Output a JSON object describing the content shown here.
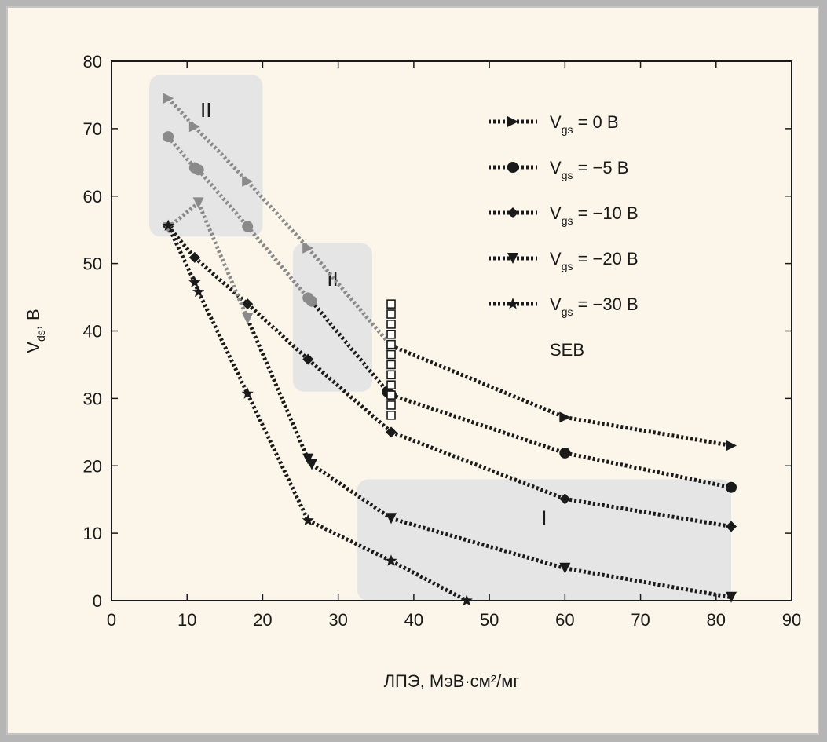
{
  "chart_data": {
    "type": "line",
    "title": "",
    "xlabel": "ЛПЭ, МэВ·см²/мг",
    "ylabel": "V_ds, В",
    "xlim": [
      0,
      90
    ],
    "ylim": [
      0,
      80
    ],
    "xticks": [
      0,
      10,
      20,
      30,
      40,
      50,
      60,
      70,
      80,
      90
    ],
    "yticks": [
      0,
      10,
      20,
      30,
      40,
      50,
      60,
      70,
      80
    ],
    "grid": false,
    "legend_position": "top-right",
    "series": [
      {
        "name": "V_gs = 0 В",
        "label_parts": [
          "V",
          "gs",
          " = 0 В"
        ],
        "marker": "triangle-right",
        "color": "#1a1a1a",
        "highlight_color": "#8a8a8a",
        "highlight_until_index": 4,
        "points": [
          [
            7.5,
            74.5
          ],
          [
            11,
            70.3
          ],
          [
            18,
            62.2
          ],
          [
            26,
            52.3
          ],
          [
            37,
            37.8
          ],
          [
            60,
            27.2
          ],
          [
            82,
            23
          ]
        ]
      },
      {
        "name": "V_gs = −5 В",
        "label_parts": [
          "V",
          "gs",
          " = −5 В"
        ],
        "marker": "circle",
        "color": "#1a1a1a",
        "highlight_color": "#8a8a8a",
        "highlight_until_index": 5,
        "points": [
          [
            7.5,
            68.8
          ],
          [
            11,
            64.2
          ],
          [
            11.5,
            63.9
          ],
          [
            18,
            55.5
          ],
          [
            26,
            44.9
          ],
          [
            26.5,
            44.4
          ],
          [
            36.5,
            31
          ],
          [
            37,
            30.5
          ],
          [
            60,
            21.9
          ],
          [
            82,
            16.8
          ]
        ]
      },
      {
        "name": "V_gs = −10 В",
        "label_parts": [
          "V",
          "gs",
          " = −10 В"
        ],
        "marker": "diamond",
        "color": "#1a1a1a",
        "highlight_color": "#8a8a8a",
        "highlight_until_index": 0,
        "points": [
          [
            7.5,
            55.5
          ],
          [
            11,
            50.9
          ],
          [
            18,
            44
          ],
          [
            26,
            35.8
          ],
          [
            37,
            25
          ],
          [
            60,
            15.1
          ],
          [
            82,
            11
          ]
        ]
      },
      {
        "name": "V_gs = −20 В",
        "label_parts": [
          "V",
          "gs",
          " = −20 В"
        ],
        "marker": "triangle-down",
        "color": "#1a1a1a",
        "highlight_color": "#8a8a8a",
        "highlight_until_index": 2,
        "points": [
          [
            7.5,
            55.3
          ],
          [
            11.5,
            59
          ],
          [
            18,
            41.8
          ],
          [
            26,
            21
          ],
          [
            26.5,
            20.2
          ],
          [
            37,
            12.2
          ],
          [
            60,
            4.8
          ],
          [
            82,
            0.5
          ]
        ]
      },
      {
        "name": "V_gs = −30 В",
        "label_parts": [
          "V",
          "gs",
          " = −30 В"
        ],
        "marker": "star",
        "color": "#1a1a1a",
        "highlight_color": "#8a8a8a",
        "highlight_until_index": 0,
        "points": [
          [
            7.5,
            55.6
          ],
          [
            11,
            47.2
          ],
          [
            11.5,
            45.8
          ],
          [
            18,
            30.7
          ],
          [
            26,
            11.9
          ],
          [
            37,
            5.9
          ],
          [
            47,
            0
          ]
        ]
      }
    ],
    "seb_points": {
      "name": "SEB",
      "marker": "square-open",
      "points": [
        [
          37,
          44
        ],
        [
          37,
          42.5
        ],
        [
          37,
          41
        ],
        [
          37,
          39.5
        ],
        [
          37,
          38
        ],
        [
          37,
          36.5
        ],
        [
          37,
          35
        ],
        [
          37,
          33.5
        ],
        [
          37,
          32
        ],
        [
          37,
          30.5
        ],
        [
          37,
          29
        ],
        [
          37,
          27.5
        ]
      ]
    },
    "regions": [
      {
        "label": "II",
        "x_range": [
          5,
          20
        ],
        "y_range": [
          54,
          78
        ]
      },
      {
        "label": "II",
        "x_range": [
          24,
          34.5
        ],
        "y_range": [
          31,
          53
        ]
      },
      {
        "label": "I",
        "x_range": [
          32.5,
          82
        ],
        "y_range": [
          0,
          18
        ]
      }
    ],
    "colors": {
      "frame_background": "#fbf6e9",
      "outer_border": "#b5b5b5",
      "region_fill": "#e5e5e5",
      "line": "#1a1a1a",
      "highlight": "#8a8a8a"
    }
  }
}
